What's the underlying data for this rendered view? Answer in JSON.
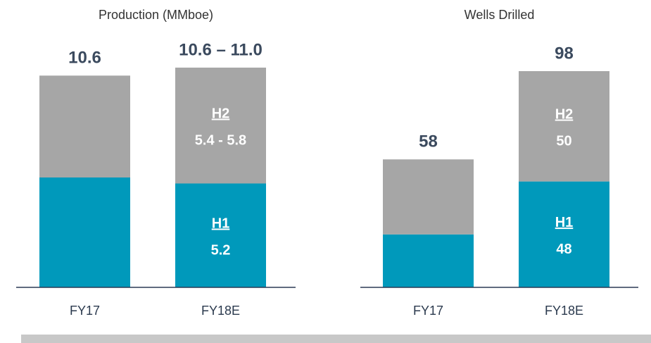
{
  "chart_data": [
    {
      "type": "bar",
      "stacked": true,
      "title": "Production (MMboe)",
      "categories": [
        "FY17",
        "FY18E"
      ],
      "series": [
        {
          "name": "H1",
          "color": "#0099bb",
          "values": [
            5.5,
            5.2
          ],
          "value_labels": [
            null,
            "5.2"
          ]
        },
        {
          "name": "H2",
          "color": "#a6a6a6",
          "values": [
            5.1,
            5.8
          ],
          "value_labels": [
            null,
            "5.4 - 5.8"
          ]
        }
      ],
      "totals": [
        10.6,
        11.0
      ],
      "total_labels": [
        "10.6",
        "10.6 – 11.0"
      ]
    },
    {
      "type": "bar",
      "stacked": true,
      "title": "Wells Drilled",
      "categories": [
        "FY17",
        "FY18E"
      ],
      "series": [
        {
          "name": "H1",
          "color": "#0099bb",
          "values": [
            24,
            48
          ],
          "value_labels": [
            null,
            "48"
          ]
        },
        {
          "name": "H2",
          "color": "#a6a6a6",
          "values": [
            34,
            50
          ],
          "value_labels": [
            null,
            "50"
          ]
        }
      ],
      "totals": [
        58,
        98
      ],
      "total_labels": [
        "58",
        "98"
      ]
    }
  ]
}
